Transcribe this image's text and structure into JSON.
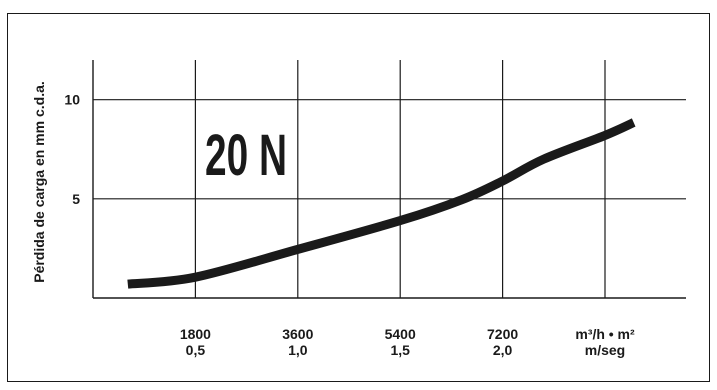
{
  "chart_data": {
    "type": "line",
    "annotation": "20 N",
    "ylabel": "Pérdida de carga en mm c.d.a.",
    "x_ticks": [
      {
        "value": 0.5,
        "top": "1800",
        "bottom": "0,5"
      },
      {
        "value": 1.0,
        "top": "3600",
        "bottom": "1,0"
      },
      {
        "value": 1.5,
        "top": "5400",
        "bottom": "1,5"
      },
      {
        "value": 2.0,
        "top": "7200",
        "bottom": "2,0"
      },
      {
        "value": 2.5,
        "top": "m³/h • m²",
        "bottom": "m/seg"
      }
    ],
    "y_ticks": [
      {
        "value": 5,
        "label": "5"
      },
      {
        "value": 10,
        "label": "10"
      }
    ],
    "xlim": [
      0,
      2.5
    ],
    "ylim": [
      0,
      12
    ],
    "grid": true,
    "series": [
      {
        "x": [
          0.17,
          0.5,
          1.0,
          1.5,
          1.8,
          2.0,
          2.2,
          2.5,
          2.64
        ],
        "y": [
          0.7,
          1.05,
          2.45,
          3.9,
          4.95,
          5.9,
          7.0,
          8.2,
          8.85
        ]
      }
    ]
  }
}
